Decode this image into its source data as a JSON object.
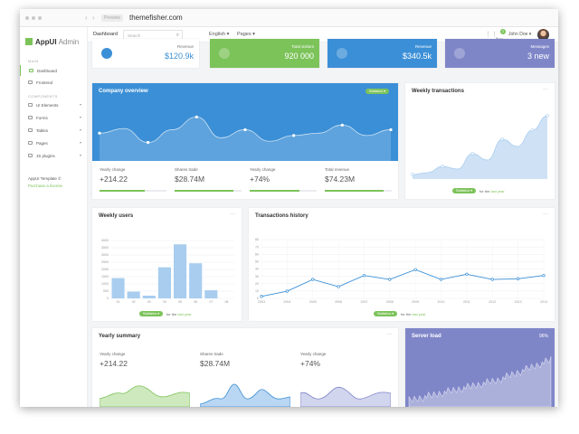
{
  "browser": {
    "tab_label": "Preview",
    "url": "themefisher.com"
  },
  "sidebar": {
    "logo_bold": "AppUI",
    "logo_light": "Admin",
    "section_main": "MAIN",
    "section_components": "COMPONENTS",
    "items": [
      {
        "label": "Dashboard"
      },
      {
        "label": "Frontend"
      },
      {
        "label": "UI Elements"
      },
      {
        "label": "Forms"
      },
      {
        "label": "Tables"
      },
      {
        "label": "Pages"
      },
      {
        "label": "JS plugins"
      }
    ],
    "footer_title": "AppUI Template ©",
    "footer_link": "Purchase a license"
  },
  "topbar": {
    "page_title": "Dashboard",
    "search_placeholder": "Search",
    "language": "English ▾",
    "pages": "Pages ▾",
    "cart_count": "2",
    "user": "John Doe ▾"
  },
  "stats": [
    {
      "label": "Revenue",
      "value": "$120.9k",
      "icon": "bell-icon"
    },
    {
      "label": "Total visitors",
      "value": "920 000",
      "icon": "users-icon"
    },
    {
      "label": "Revenue",
      "value": "$340.5k",
      "icon": "car-icon"
    },
    {
      "label": "Messages",
      "value": "3 new",
      "icon": "mail-icon"
    }
  ],
  "colors": {
    "green": "#7cc35a",
    "blue": "#3b8fd6",
    "purple": "#7f86c8",
    "light_blue": "#a8cdef"
  },
  "company": {
    "title": "Company overview",
    "pill": "Statistics ▾",
    "stats": [
      {
        "label": "Yearly change",
        "value": "+214.22",
        "progress": 0.68
      },
      {
        "label": "Shares trade",
        "value": "$28.74M",
        "progress": 0.88
      },
      {
        "label": "Yearly change",
        "value": "+74%",
        "progress": 0.74
      },
      {
        "label": "Total revenue",
        "value": "$74.23M",
        "progress": 0.88
      }
    ]
  },
  "weekly_transactions": {
    "title": "Weekly transactions",
    "pill": "Statistics ▾",
    "note_prefix": "for the",
    "note_link": "last year"
  },
  "weekly_users": {
    "title": "Weekly users",
    "pill": "Statistics ▾",
    "note_prefix": "for the",
    "note_link": "last year"
  },
  "transactions_history": {
    "title": "Transactions history",
    "pill": "Statistics ▾",
    "note_prefix": "for the",
    "note_link": "last year"
  },
  "yearly_summary": {
    "title": "Yearly summary",
    "items": [
      {
        "label": "Yearly change",
        "value": "+214.22"
      },
      {
        "label": "Shares trade",
        "value": "$28.74M"
      },
      {
        "label": "Yearly change",
        "value": "+74%"
      }
    ]
  },
  "server_load": {
    "title": "Server load",
    "value": "96%"
  },
  "chart_data": [
    {
      "type": "area",
      "name": "company-overview",
      "x": [
        0,
        1,
        2,
        3,
        4,
        5,
        6,
        7,
        8,
        9,
        10,
        11,
        12
      ],
      "values": [
        24,
        28,
        16,
        27,
        38,
        20,
        27,
        17,
        22,
        24,
        31,
        22,
        27
      ],
      "ylim": [
        0,
        50
      ]
    },
    {
      "type": "area",
      "name": "weekly-transactions",
      "x": [
        0,
        1,
        2,
        3,
        4,
        5,
        6,
        7,
        8,
        9
      ],
      "values": [
        5,
        7,
        14,
        11,
        28,
        21,
        44,
        36,
        54,
        70
      ],
      "ylim": [
        0,
        80
      ]
    },
    {
      "type": "bar",
      "name": "weekly-users",
      "categories": [
        "01",
        "02",
        "03",
        "04",
        "05",
        "06",
        "07",
        "08"
      ],
      "values": [
        1500,
        500,
        200,
        2300,
        4000,
        2600,
        600,
        0
      ],
      "yticks": [
        "4000",
        "3500",
        "3000",
        "2500",
        "2000",
        "1500",
        "1000",
        "500",
        "0"
      ],
      "ylim": [
        0,
        4500
      ]
    },
    {
      "type": "line",
      "name": "transactions-history",
      "categories": [
        "2003",
        "2004",
        "2005",
        "2006",
        "2007",
        "2008",
        "2009",
        "2010",
        "2011",
        "2012",
        "2013",
        "2014"
      ],
      "values": [
        3,
        11,
        29,
        18,
        35,
        29,
        44,
        29,
        37,
        29,
        30,
        35
      ],
      "yticks": [
        "80",
        "70",
        "60",
        "50",
        "40",
        "30",
        "20",
        "10",
        "0"
      ],
      "ylim": [
        0,
        90
      ]
    }
  ]
}
